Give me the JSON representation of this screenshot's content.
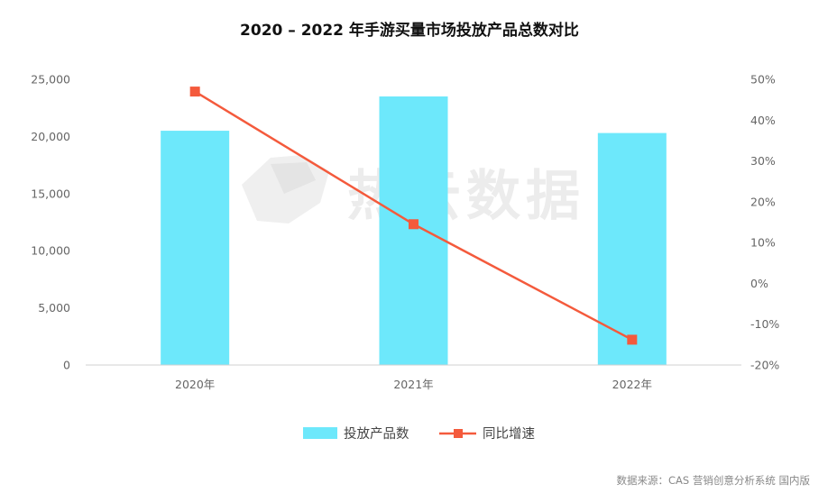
{
  "chart_data": {
    "type": "bar+line",
    "title": "2020 – 2022 年手游买量市场投放产品总数对比",
    "categories": [
      "2020年",
      "2021年",
      "2022年"
    ],
    "series": [
      {
        "name": "投放产品数",
        "type": "bar",
        "axis": "left",
        "color": "#6de8fb",
        "values": [
          20500,
          23500,
          20300
        ]
      },
      {
        "name": "同比增速",
        "type": "line",
        "axis": "right",
        "color": "#f45a3c",
        "values": [
          47,
          14.5,
          -13.8
        ]
      }
    ],
    "left_axis": {
      "ylim": [
        0,
        25000
      ],
      "ticks": [
        "0",
        "5,000",
        "10,000",
        "15,000",
        "20,000",
        "25,000"
      ]
    },
    "right_axis": {
      "ylim": [
        -20,
        50
      ],
      "ticks": [
        "-20%",
        "-10%",
        "0%",
        "10%",
        "20%",
        "30%",
        "40%",
        "50%"
      ]
    },
    "grid": false,
    "legend": "bottom-center"
  },
  "watermark": {
    "text": "热云数据"
  },
  "source": "数据来源：CAS 营销创意分析系统 国内版"
}
